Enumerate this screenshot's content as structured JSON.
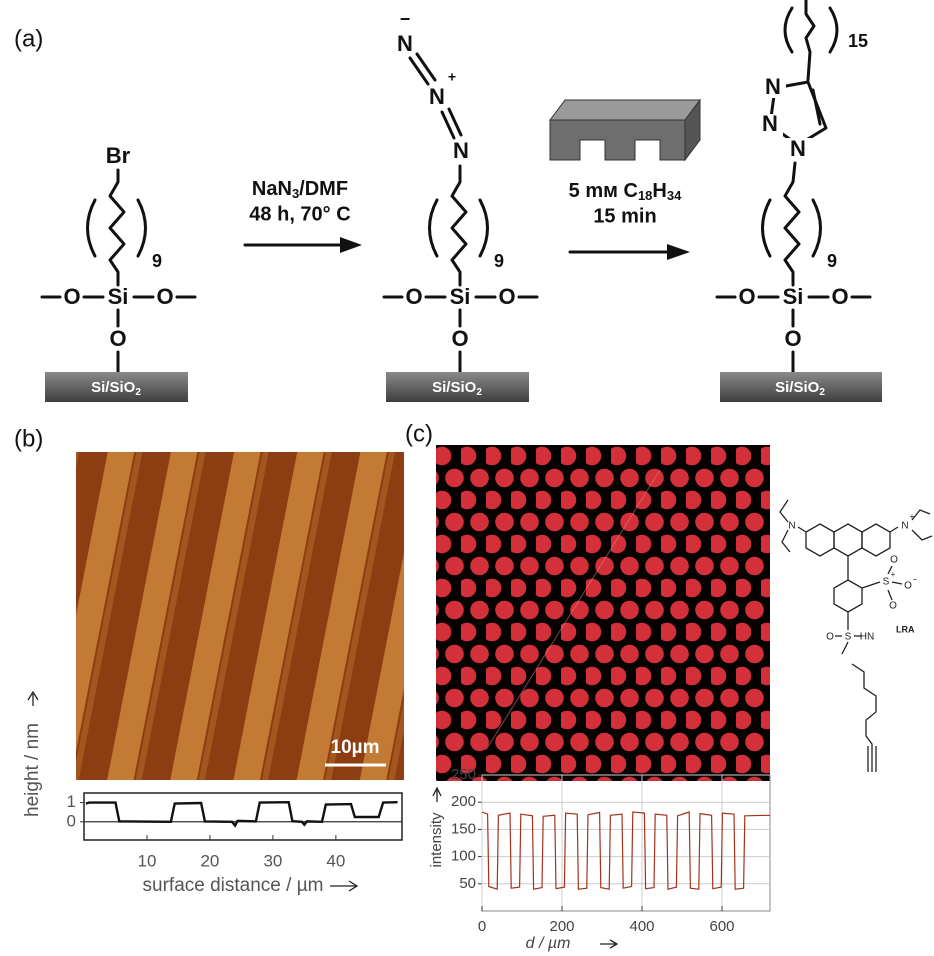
{
  "panel_labels": {
    "a": "(a)",
    "b": "(b)",
    "c": "(c)"
  },
  "scheme": {
    "molecule_1": {
      "top": "Br",
      "repeat": "9",
      "atoms": [
        "O",
        "Si",
        "O",
        "O"
      ],
      "substrate": [
        "Si/SiO",
        "2"
      ]
    },
    "step_1": {
      "reagent": [
        "NaN",
        "3",
        "/DMF"
      ],
      "conditions": "48 h, 70° C"
    },
    "molecule_2": {
      "azide": [
        "N",
        "−",
        "N",
        "+",
        "N"
      ],
      "repeat": "9",
      "atoms": [
        "O",
        "Si",
        "O",
        "O"
      ],
      "substrate": [
        "Si/SiO",
        "2"
      ]
    },
    "step_2": {
      "reagent": [
        "5 mм C",
        "18",
        "H",
        "34"
      ],
      "conditions": "15 min"
    },
    "molecule_3": {
      "triazole": [
        "N",
        "N",
        "N"
      ],
      "tail_repeat": "15",
      "repeat": "9",
      "atoms": [
        "O",
        "Si",
        "O",
        "O"
      ],
      "substrate": [
        "Si/SiO",
        "2"
      ]
    }
  },
  "afm_image": {
    "scale_bar": "10µm"
  },
  "dye": {
    "label": "LRA",
    "atoms": [
      "N",
      "N",
      "+",
      "S",
      "+",
      "O",
      "O",
      "−",
      "O",
      "S",
      "O",
      "HN"
    ]
  },
  "chart_data": [
    {
      "type": "line",
      "xlabel": "surface distance / µm",
      "ylabel": "height / nm",
      "color": "#111111",
      "x": [
        0.3,
        0.8,
        5.0,
        5.6,
        13.8,
        14.4,
        18.6,
        19.2,
        23.5,
        24.0,
        24.4,
        27.3,
        27.9,
        32.5,
        33.1,
        34.6,
        35.0,
        35.4,
        37.8,
        38.4,
        42.4,
        43.0,
        46.8,
        47.5,
        49.8
      ],
      "values": [
        0.95,
        1.0,
        1.0,
        0.02,
        0.0,
        0.95,
        0.98,
        0.02,
        0.0,
        -0.2,
        0.05,
        0.02,
        1.0,
        1.02,
        0.03,
        0.0,
        -0.15,
        0.02,
        0.0,
        0.9,
        0.92,
        0.25,
        0.25,
        1.0,
        1.02
      ],
      "xlim": [
        0,
        50.5
      ],
      "ylim": [
        -0.95,
        1.5
      ],
      "xticks": [
        10,
        20,
        30,
        40
      ],
      "yticks": [
        0,
        1
      ],
      "grid": false
    },
    {
      "type": "line",
      "xlabel": "d / µm",
      "ylabel": "intensity",
      "color": "#a3321c",
      "x": [
        0,
        14,
        17,
        38,
        41,
        70,
        73,
        94,
        97,
        126,
        129,
        150,
        153,
        182,
        185,
        206,
        209,
        238,
        241,
        262,
        265,
        294,
        297,
        318,
        321,
        350,
        353,
        374,
        377,
        406,
        409,
        430,
        433,
        462,
        465,
        486,
        489,
        518,
        521,
        542,
        545,
        574,
        577,
        598,
        601,
        630,
        633,
        654,
        657,
        720
      ],
      "values": [
        182,
        178,
        45,
        40,
        176,
        180,
        42,
        44,
        178,
        175,
        40,
        43,
        174,
        176,
        41,
        44,
        180,
        178,
        40,
        42,
        177,
        181,
        43,
        40,
        176,
        178,
        42,
        45,
        182,
        180,
        41,
        43,
        178,
        176,
        40,
        44,
        175,
        182,
        42,
        40,
        179,
        176,
        41,
        44,
        180,
        178,
        40,
        42,
        175,
        176
      ],
      "xlim": [
        0,
        720
      ],
      "ylim": [
        0,
        250
      ],
      "xticks": [
        0,
        200,
        400,
        600
      ],
      "yticks": [
        50,
        100,
        150,
        200,
        250
      ],
      "grid": true
    }
  ]
}
